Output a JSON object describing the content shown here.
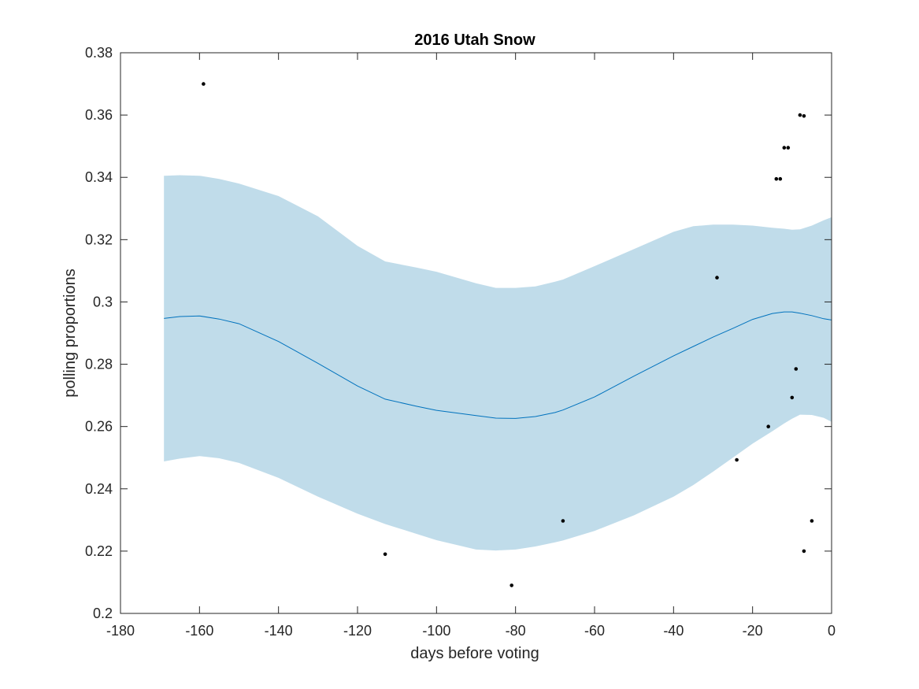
{
  "colors": {
    "band": "#c0dcea",
    "mean_line": "#0072bd",
    "points": "#000000",
    "axes": "#262626"
  },
  "chart_data": {
    "type": "line",
    "title": "2016 Utah Snow",
    "xlabel": "days before voting",
    "ylabel": "polling proportions",
    "xlim": [
      -180,
      0
    ],
    "ylim": [
      0.2,
      0.38
    ],
    "xticks": [
      -180,
      -160,
      -140,
      -120,
      -100,
      -80,
      -60,
      -40,
      -20,
      0
    ],
    "xtick_labels": [
      "-180",
      "-160",
      "-140",
      "-120",
      "-100",
      "-80",
      "-60",
      "-40",
      "-20",
      "0"
    ],
    "yticks": [
      0.2,
      0.22,
      0.24,
      0.26,
      0.28,
      0.3,
      0.32,
      0.34,
      0.36,
      0.38
    ],
    "ytick_labels": [
      "0.2",
      "0.22",
      "0.24",
      "0.26",
      "0.28",
      "0.3",
      "0.32",
      "0.34",
      "0.36",
      "0.38"
    ],
    "grid": false,
    "legend": "none",
    "band": {
      "x": [
        -169,
        -165,
        -160,
        -155,
        -150,
        -140,
        -130,
        -120,
        -113,
        -105,
        -100,
        -90,
        -85,
        -80,
        -75,
        -70,
        -68,
        -60,
        -50,
        -40,
        -35,
        -30,
        -25,
        -20,
        -15,
        -12,
        -10,
        -8,
        -5,
        -2,
        0
      ],
      "upper": [
        0.3405,
        0.3407,
        0.3405,
        0.3395,
        0.338,
        0.334,
        0.3275,
        0.318,
        0.313,
        0.311,
        0.3097,
        0.306,
        0.3045,
        0.3045,
        0.305,
        0.3065,
        0.3072,
        0.3115,
        0.317,
        0.3225,
        0.3243,
        0.3248,
        0.3248,
        0.3245,
        0.3238,
        0.3235,
        0.3232,
        0.3233,
        0.3245,
        0.3262,
        0.3272
      ],
      "lower": [
        0.2488,
        0.2497,
        0.2505,
        0.2498,
        0.2483,
        0.2435,
        0.2375,
        0.232,
        0.2287,
        0.2255,
        0.2235,
        0.2205,
        0.2202,
        0.2205,
        0.2215,
        0.2228,
        0.2234,
        0.2265,
        0.2315,
        0.2375,
        0.2412,
        0.2455,
        0.25,
        0.2545,
        0.2585,
        0.261,
        0.2625,
        0.2638,
        0.2637,
        0.2628,
        0.2615
      ]
    },
    "series": [
      {
        "type": "line",
        "x": [
          -169,
          -165,
          -160,
          -155,
          -150,
          -140,
          -130,
          -120,
          -113,
          -105,
          -100,
          -90,
          -85,
          -80,
          -75,
          -70,
          -68,
          -60,
          -50,
          -40,
          -35,
          -30,
          -25,
          -20,
          -15,
          -12,
          -10,
          -8,
          -5,
          -2,
          0
        ],
        "values": [
          0.2947,
          0.2953,
          0.2955,
          0.2945,
          0.293,
          0.2873,
          0.2803,
          0.273,
          0.2688,
          0.2665,
          0.2652,
          0.2635,
          0.2627,
          0.2626,
          0.2632,
          0.2645,
          0.2653,
          0.2695,
          0.2762,
          0.2827,
          0.2857,
          0.2887,
          0.2915,
          0.2944,
          0.2963,
          0.2968,
          0.2968,
          0.2964,
          0.2956,
          0.2946,
          0.2942
        ]
      },
      {
        "type": "scatter",
        "x": [
          -159,
          -113,
          -81,
          -68,
          -29,
          -24,
          -16,
          -14,
          -13,
          -12,
          -11,
          -10,
          -9,
          -8,
          -7,
          -7,
          -5
        ],
        "values": [
          0.37,
          0.219,
          0.209,
          0.2297,
          0.3078,
          0.2493,
          0.26,
          0.3395,
          0.3395,
          0.3495,
          0.3495,
          0.2693,
          0.2785,
          0.36,
          0.3597,
          0.22,
          0.2297
        ]
      }
    ]
  }
}
